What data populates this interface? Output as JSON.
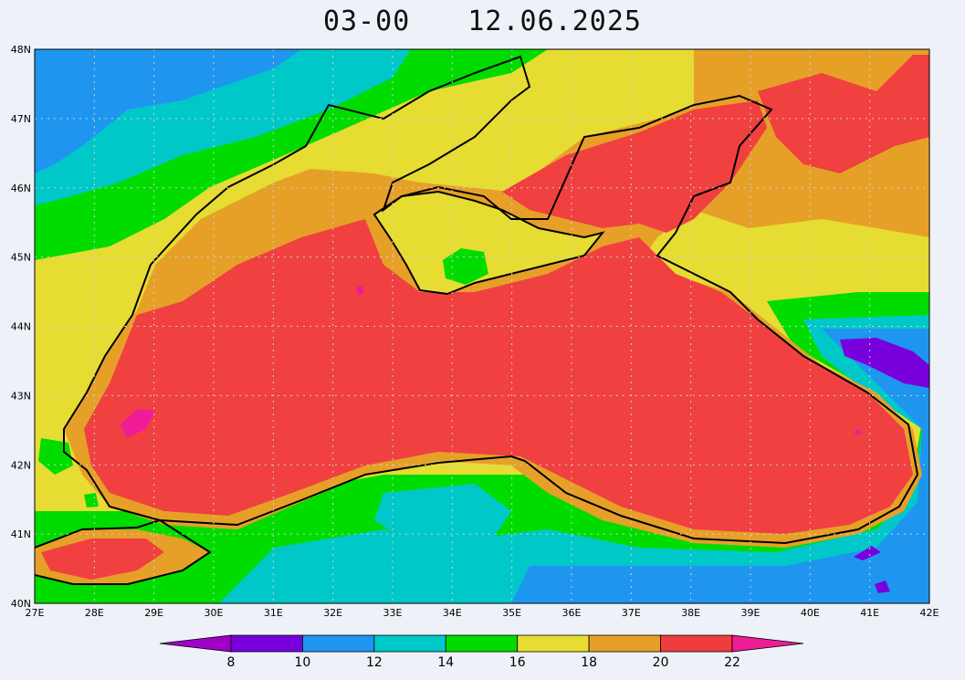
{
  "title": {
    "time": "03-00",
    "date": "12.06.2025"
  },
  "axes": {
    "lat_ticks": [
      "48N",
      "47N",
      "46N",
      "45N",
      "44N",
      "43N",
      "42N",
      "41N",
      "40N"
    ],
    "lon_ticks": [
      "27E",
      "28E",
      "29E",
      "30E",
      "31E",
      "32E",
      "33E",
      "34E",
      "35E",
      "36E",
      "37E",
      "38E",
      "39E",
      "40E",
      "41E",
      "42E"
    ]
  },
  "colorbar": {
    "labels": [
      "8",
      "10",
      "12",
      "14",
      "16",
      "18",
      "20",
      "22"
    ],
    "colors": [
      "#a000c8",
      "#7800dc",
      "#1e96f0",
      "#00c8c8",
      "#00dc00",
      "#e6dc32",
      "#e6a028",
      "#f03c3c",
      "#f01c96"
    ]
  },
  "palette": {
    "ocean_warm": "#f04040",
    "coast_band": "#e6a028",
    "land_18": "#e6dc32",
    "land_16": "#00dc00",
    "land_14": "#00c8c8",
    "land_12": "#1e96f0",
    "cold_10": "#7800dc",
    "hot_22": "#f01c96"
  }
}
